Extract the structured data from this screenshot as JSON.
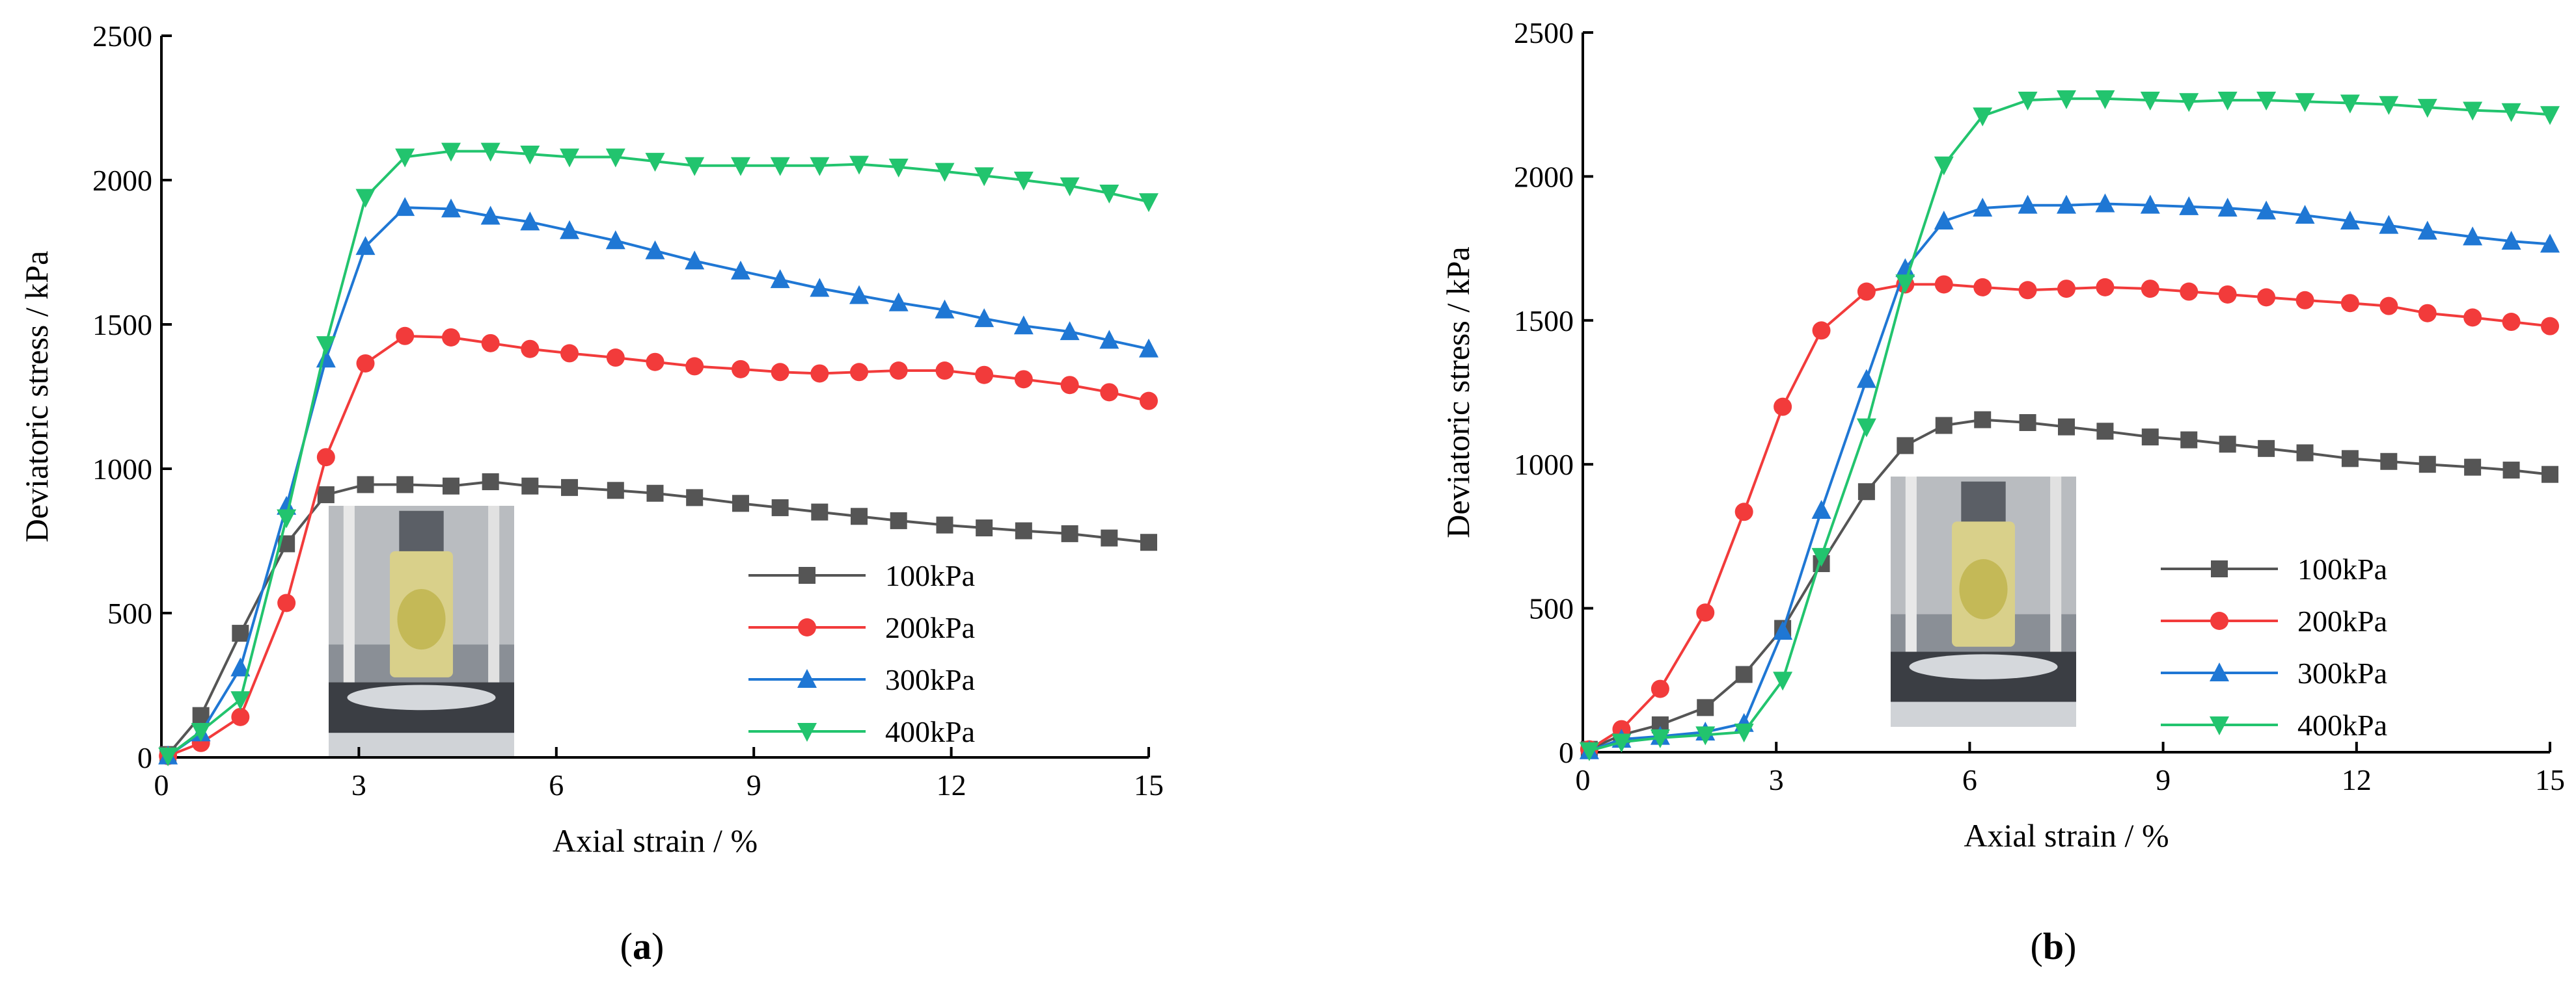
{
  "chart_data": [
    {
      "type": "line",
      "panel_label": "(a)",
      "panel_letter": "a",
      "xlabel": "Axial strain / %",
      "ylabel": "Deviatoric stress / kPa",
      "xlim": [
        0,
        15
      ],
      "ylim": [
        0,
        2500
      ],
      "x_ticks": [
        "0",
        "3",
        "6",
        "9",
        "12",
        "15"
      ],
      "y_ticks": [
        "0",
        "500",
        "1000",
        "1500",
        "2000",
        "2500"
      ],
      "grid": false,
      "legend_position": "bottom-right",
      "inset_photo": "specimen-photo",
      "series": [
        {
          "name": "100kPa",
          "color": "#555555",
          "marker": "square",
          "x": [
            0.1,
            0.6,
            1.2,
            1.9,
            2.5,
            3.1,
            3.7,
            4.4,
            5.0,
            5.6,
            6.2,
            6.9,
            7.5,
            8.1,
            8.8,
            9.4,
            10.0,
            10.6,
            11.2,
            11.9,
            12.5,
            13.1,
            13.8,
            14.4,
            15.0
          ],
          "y": [
            10,
            145,
            430,
            740,
            910,
            945,
            945,
            940,
            955,
            940,
            935,
            925,
            915,
            900,
            880,
            865,
            850,
            835,
            820,
            805,
            795,
            785,
            775,
            760,
            745
          ]
        },
        {
          "name": "200kPa",
          "color": "#f23b3b",
          "marker": "circle",
          "x": [
            0.1,
            0.6,
            1.2,
            1.9,
            2.5,
            3.1,
            3.7,
            4.4,
            5.0,
            5.6,
            6.2,
            6.9,
            7.5,
            8.1,
            8.8,
            9.4,
            10.0,
            10.6,
            11.2,
            11.9,
            12.5,
            13.1,
            13.8,
            14.4,
            15.0
          ],
          "y": [
            5,
            50,
            140,
            535,
            1040,
            1365,
            1460,
            1455,
            1435,
            1415,
            1400,
            1385,
            1370,
            1355,
            1345,
            1335,
            1330,
            1335,
            1340,
            1340,
            1325,
            1310,
            1290,
            1265,
            1235
          ]
        },
        {
          "name": "300kPa",
          "color": "#1f77d4",
          "marker": "triangle-up",
          "x": [
            0.1,
            0.6,
            1.2,
            1.9,
            2.5,
            3.1,
            3.7,
            4.4,
            5.0,
            5.6,
            6.2,
            6.9,
            7.5,
            8.1,
            8.8,
            9.4,
            10.0,
            10.6,
            11.2,
            11.9,
            12.5,
            13.1,
            13.8,
            14.4,
            15.0
          ],
          "y": [
            5,
            85,
            310,
            870,
            1380,
            1770,
            1905,
            1900,
            1875,
            1855,
            1825,
            1790,
            1755,
            1720,
            1685,
            1655,
            1625,
            1600,
            1575,
            1550,
            1520,
            1495,
            1475,
            1445,
            1415
          ]
        },
        {
          "name": "400kPa",
          "color": "#22c46e",
          "marker": "triangle-down",
          "x": [
            0.1,
            0.6,
            1.2,
            1.9,
            2.5,
            3.1,
            3.7,
            4.4,
            5.0,
            5.6,
            6.2,
            6.9,
            7.5,
            8.1,
            8.8,
            9.4,
            10.0,
            10.6,
            11.2,
            11.9,
            12.5,
            13.1,
            13.8,
            14.4,
            15.0
          ],
          "y": [
            5,
            90,
            200,
            830,
            1430,
            1940,
            2080,
            2100,
            2100,
            2090,
            2080,
            2080,
            2065,
            2050,
            2050,
            2050,
            2050,
            2055,
            2045,
            2030,
            2015,
            2000,
            1980,
            1955,
            1925
          ]
        }
      ]
    },
    {
      "type": "line",
      "panel_label": "(b)",
      "panel_letter": "b",
      "xlabel": "Axial strain / %",
      "ylabel": "Deviatoric stress / kPa",
      "xlim": [
        0,
        15
      ],
      "ylim": [
        0,
        2500
      ],
      "x_ticks": [
        "0",
        "3",
        "6",
        "9",
        "12",
        "15"
      ],
      "y_ticks": [
        "0",
        "500",
        "1000",
        "1500",
        "2000",
        "2500"
      ],
      "grid": false,
      "legend_position": "bottom-right",
      "inset_photo": "specimen-photo",
      "series": [
        {
          "name": "100kPa",
          "color": "#555555",
          "marker": "square",
          "x": [
            0.1,
            0.6,
            1.2,
            1.9,
            2.5,
            3.1,
            3.7,
            4.4,
            5.0,
            5.6,
            6.2,
            6.9,
            7.5,
            8.1,
            8.8,
            9.4,
            10.0,
            10.6,
            11.2,
            11.9,
            12.5,
            13.1,
            13.8,
            14.4,
            15.0
          ],
          "y": [
            10,
            60,
            95,
            155,
            270,
            430,
            655,
            905,
            1065,
            1135,
            1155,
            1145,
            1130,
            1115,
            1095,
            1085,
            1070,
            1055,
            1040,
            1020,
            1010,
            1000,
            990,
            980,
            965
          ]
        },
        {
          "name": "200kPa",
          "color": "#f23b3b",
          "marker": "circle",
          "x": [
            0.1,
            0.6,
            1.2,
            1.9,
            2.5,
            3.1,
            3.7,
            4.4,
            5.0,
            5.6,
            6.2,
            6.9,
            7.5,
            8.1,
            8.8,
            9.4,
            10.0,
            10.6,
            11.2,
            11.9,
            12.5,
            13.1,
            13.8,
            14.4,
            15.0
          ],
          "y": [
            10,
            80,
            220,
            485,
            835,
            1200,
            1465,
            1600,
            1625,
            1625,
            1615,
            1605,
            1610,
            1615,
            1610,
            1600,
            1590,
            1580,
            1570,
            1560,
            1550,
            1525,
            1510,
            1495,
            1480
          ]
        },
        {
          "name": "300kPa",
          "color": "#1f77d4",
          "marker": "triangle-up",
          "x": [
            0.1,
            0.6,
            1.2,
            1.9,
            2.5,
            3.1,
            3.7,
            4.4,
            5.0,
            5.6,
            6.2,
            6.9,
            7.5,
            8.1,
            8.8,
            9.4,
            10.0,
            10.6,
            11.2,
            11.9,
            12.5,
            13.1,
            13.8,
            14.4,
            15.0
          ],
          "y": [
            5,
            45,
            55,
            70,
            100,
            420,
            840,
            1295,
            1680,
            1845,
            1890,
            1900,
            1900,
            1905,
            1900,
            1895,
            1890,
            1880,
            1865,
            1845,
            1830,
            1810,
            1790,
            1775,
            1765
          ]
        },
        {
          "name": "400kPa",
          "color": "#22c46e",
          "marker": "triangle-down",
          "x": [
            0.1,
            0.6,
            1.2,
            1.9,
            2.5,
            3.1,
            3.7,
            4.4,
            5.0,
            5.6,
            6.2,
            6.9,
            7.5,
            8.1,
            8.8,
            9.4,
            10.0,
            10.6,
            11.2,
            11.9,
            12.5,
            13.1,
            13.8,
            14.4,
            15.0
          ],
          "y": [
            5,
            35,
            50,
            60,
            70,
            250,
            680,
            1130,
            1630,
            2040,
            2210,
            2265,
            2270,
            2270,
            2265,
            2260,
            2265,
            2265,
            2260,
            2255,
            2250,
            2240,
            2230,
            2225,
            2215
          ]
        }
      ]
    }
  ]
}
